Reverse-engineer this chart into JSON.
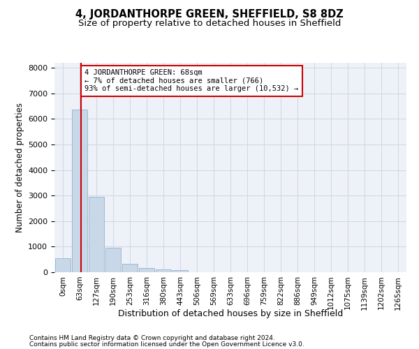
{
  "title": "4, JORDANTHORPE GREEN, SHEFFIELD, S8 8DZ",
  "subtitle": "Size of property relative to detached houses in Sheffield",
  "xlabel": "Distribution of detached houses by size in Sheffield",
  "ylabel": "Number of detached properties",
  "footnote1": "Contains HM Land Registry data © Crown copyright and database right 2024.",
  "footnote2": "Contains public sector information licensed under the Open Government Licence v3.0.",
  "bar_labels": [
    "0sqm",
    "63sqm",
    "127sqm",
    "190sqm",
    "253sqm",
    "316sqm",
    "380sqm",
    "443sqm",
    "506sqm",
    "569sqm",
    "633sqm",
    "696sqm",
    "759sqm",
    "822sqm",
    "886sqm",
    "949sqm",
    "1012sqm",
    "1075sqm",
    "1139sqm",
    "1202sqm",
    "1265sqm"
  ],
  "bar_values": [
    550,
    6380,
    2960,
    955,
    340,
    170,
    100,
    75,
    0,
    0,
    0,
    0,
    0,
    0,
    0,
    0,
    0,
    0,
    0,
    0,
    0
  ],
  "bar_color": "#c8d8e8",
  "bar_edgecolor": "#a0b8d0",
  "ylim": [
    0,
    8200
  ],
  "yticks": [
    0,
    1000,
    2000,
    3000,
    4000,
    5000,
    6000,
    7000,
    8000
  ],
  "property_line_x": 1.07,
  "annotation_title": "4 JORDANTHORPE GREEN: 68sqm",
  "annotation_line2": "← 7% of detached houses are smaller (766)",
  "annotation_line3": "93% of semi-detached houses are larger (10,532) →",
  "vline_color": "#cc0000",
  "annotation_box_color": "#ffffff",
  "annotation_box_edgecolor": "#cc0000",
  "grid_color": "#d0d8e8",
  "bg_color": "#eef2f8"
}
